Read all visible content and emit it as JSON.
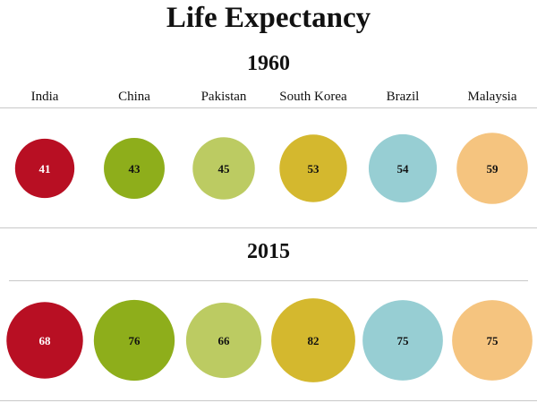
{
  "chart_data": {
    "type": "bubble",
    "title": "Life Expectancy",
    "categories": [
      "India",
      "China",
      "Pakistan",
      "South Korea",
      "Brazil",
      "Malaysia"
    ],
    "colors": [
      "#b80f23",
      "#8eae1b",
      "#bccb62",
      "#d4b82e",
      "#97ced3",
      "#f5c47f"
    ],
    "label_colors": [
      "#ffffff",
      "#111111",
      "#111111",
      "#111111",
      "#111111",
      "#111111"
    ],
    "series": [
      {
        "name": "1960",
        "values": [
          41,
          43,
          45,
          53,
          54,
          59
        ]
      },
      {
        "name": "2015",
        "values": [
          68,
          76,
          66,
          82,
          75,
          75
        ]
      }
    ]
  }
}
